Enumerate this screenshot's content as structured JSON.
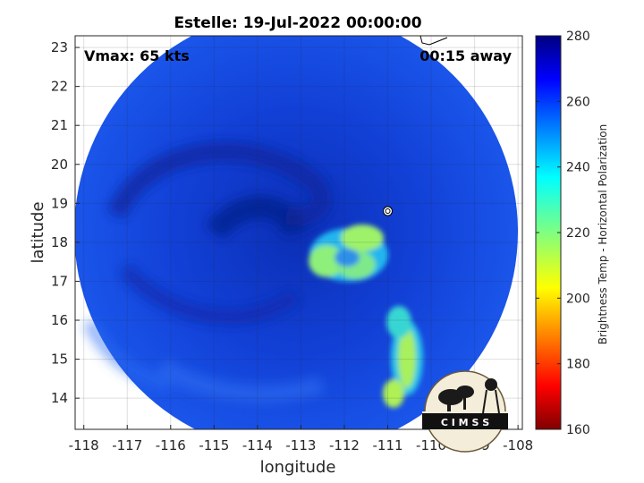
{
  "chart_data": {
    "type": "heatmap",
    "title": "Estelle: 19-Jul-2022 00:00:00",
    "xlabel": "longitude",
    "ylabel": "latitude",
    "xlim": [
      -118.2,
      -107.9
    ],
    "ylim": [
      13.2,
      23.3
    ],
    "xticks": [
      "-118",
      "-117",
      "-116",
      "-115",
      "-114",
      "-113",
      "-112",
      "-111",
      "-110",
      "-109",
      "-108"
    ],
    "yticks": [
      "14",
      "15",
      "16",
      "17",
      "18",
      "19",
      "20",
      "21",
      "22",
      "23"
    ],
    "grid": true,
    "annotations": {
      "vmax": "Vmax: 65 kts",
      "time_offset": "00:15 away"
    },
    "storm_center": {
      "lon": -111.0,
      "lat": 18.8
    },
    "colorbar": {
      "label": "Brightness Temp - Horizontal Polarization",
      "range": [
        160,
        280
      ],
      "ticks": [
        "160",
        "180",
        "200",
        "220",
        "240",
        "260",
        "280"
      ],
      "colormap": "jet"
    },
    "swath_center": {
      "lon": -113.05,
      "lat": 18.05
    },
    "swath_radius_deg": 5.6,
    "colors": {
      "background_cold": "#1546e0",
      "dark_band": "#0a2fb8",
      "warm_core": "#3ee6b8",
      "warmest": "#e8f060"
    }
  },
  "logo": {
    "text": "C I M S S"
  }
}
